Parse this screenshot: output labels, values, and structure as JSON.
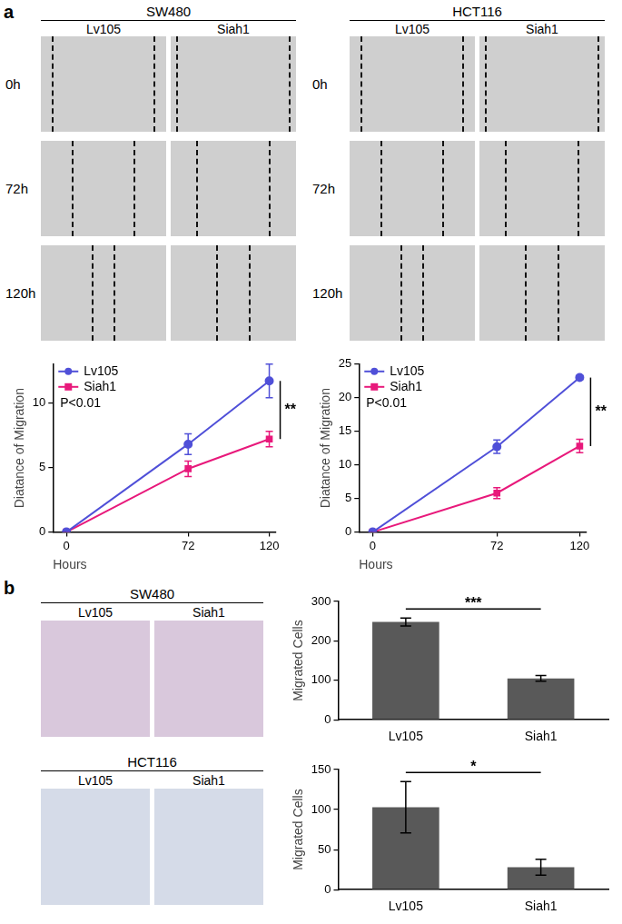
{
  "panels": [
    {
      "label": "a",
      "groups": [
        {
          "title": "SW480",
          "columns": [
            "Lv105",
            "Siah1"
          ],
          "rows": [
            "0h",
            "72h",
            "120h"
          ]
        },
        {
          "title": "HCT116",
          "columns": [
            "Lv105",
            "Siah1"
          ],
          "rows": [
            "0h",
            "72h",
            "120h"
          ]
        }
      ]
    },
    {
      "label": "b",
      "groups": [
        {
          "title": "SW480",
          "columns": [
            "Lv105",
            "Siah1"
          ]
        },
        {
          "title": "HCT116",
          "columns": [
            "Lv105",
            "Siah1"
          ]
        }
      ]
    }
  ],
  "chart_data": [
    {
      "type": "line",
      "x": [
        0,
        72,
        120
      ],
      "xlim": [
        -8,
        124
      ],
      "xticks": [
        0,
        72,
        120
      ],
      "ylim": [
        0,
        13
      ],
      "yticks": [
        0,
        5,
        10
      ],
      "x_label": "Hours",
      "y_label": "Diatance of Migration",
      "grid": false,
      "legend": "upper left",
      "p_text": "P<0.01",
      "significance": "**",
      "series": [
        {
          "name": "Lv105",
          "color": "#5050d8",
          "marker": "circle",
          "values": [
            0,
            6.8,
            11.7
          ],
          "errors": [
            0,
            0.8,
            1.3
          ]
        },
        {
          "name": "Siah1",
          "color": "#e8197b",
          "marker": "square",
          "values": [
            0,
            4.9,
            7.2
          ],
          "errors": [
            0,
            0.6,
            0.6
          ]
        }
      ]
    },
    {
      "type": "line",
      "x": [
        0,
        72,
        120
      ],
      "xlim": [
        -8,
        124
      ],
      "xticks": [
        0,
        72,
        120
      ],
      "ylim": [
        0,
        25
      ],
      "yticks": [
        0,
        5,
        10,
        15,
        20,
        25
      ],
      "x_label": "Hours",
      "y_label": "Diatance of Migration",
      "grid": false,
      "legend": "upper left",
      "p_text": "P<0.01",
      "significance": "**",
      "series": [
        {
          "name": "Lv105",
          "color": "#5050d8",
          "marker": "circle",
          "values": [
            0,
            12.7,
            23
          ],
          "errors": [
            0,
            1.0,
            0.3
          ]
        },
        {
          "name": "Siah1",
          "color": "#e8197b",
          "marker": "square",
          "values": [
            0,
            5.8,
            12.8
          ],
          "errors": [
            0,
            0.8,
            1.0
          ]
        }
      ]
    },
    {
      "type": "bar",
      "categories": [
        "Lv105",
        "Siah1"
      ],
      "values": [
        248,
        105
      ],
      "errors": [
        10,
        7
      ],
      "color": "#595959",
      "ylim": [
        0,
        300
      ],
      "yticks": [
        0,
        100,
        200,
        300
      ],
      "y_label": "Migrated Cells",
      "grid": false,
      "significance": "***"
    },
    {
      "type": "bar",
      "categories": [
        "Lv105",
        "Siah1"
      ],
      "values": [
        103,
        28
      ],
      "errors": [
        32,
        10
      ],
      "color": "#595959",
      "ylim": [
        0,
        150
      ],
      "yticks": [
        0,
        50,
        100,
        150
      ],
      "y_label": "Migrated Cells",
      "grid": false,
      "significance": "*"
    }
  ]
}
